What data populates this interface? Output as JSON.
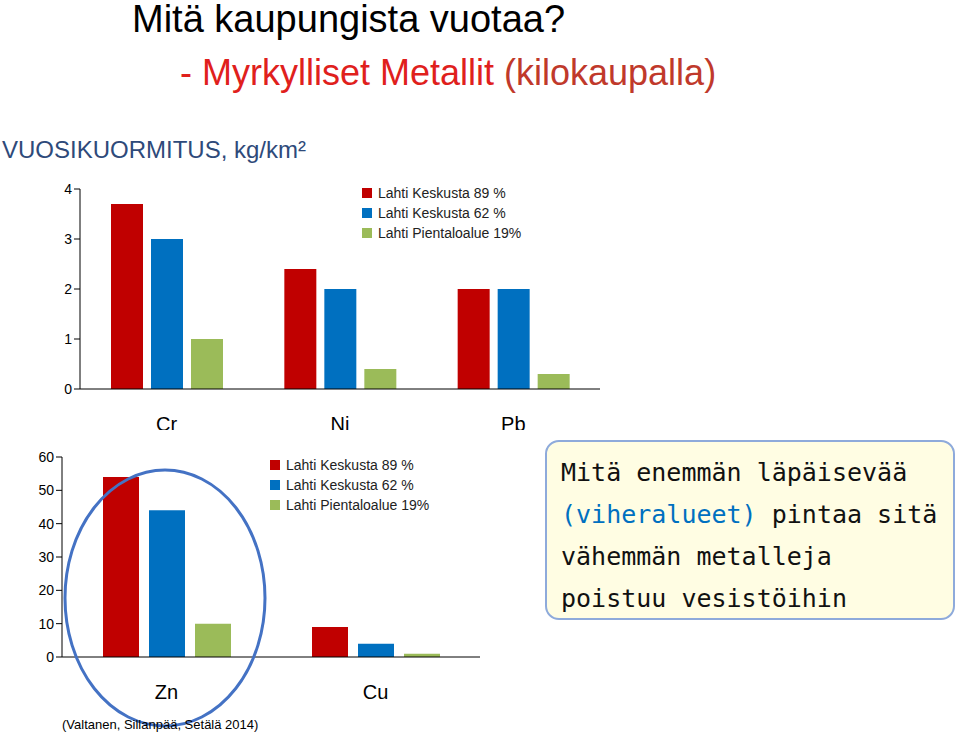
{
  "chart_data": [
    {
      "type": "bar",
      "title": "Mitä kaupungista vuotaa?",
      "subtitle": "- Myrkylliset Metallit (kilokaupalla)",
      "ylabel": "VUOSIKUORMITUS, kg/km²",
      "categories": [
        "Cr",
        "Ni",
        "Pb"
      ],
      "series": [
        {
          "name": "Lahti Keskusta 89 %",
          "color": "#c00000",
          "values": [
            3.7,
            2.4,
            2.0
          ]
        },
        {
          "name": "Lahti Keskusta 62 %",
          "color": "#0070c0",
          "values": [
            3.0,
            2.0,
            2.0
          ]
        },
        {
          "name": "Lahti Pientaloalue 19%",
          "color": "#9bbb59",
          "values": [
            1.0,
            0.4,
            0.3
          ]
        }
      ],
      "ylim": [
        0,
        4
      ],
      "yticks": [
        0,
        1,
        2,
        3,
        4
      ],
      "grid": false
    },
    {
      "type": "bar",
      "categories": [
        "Zn",
        "Cu"
      ],
      "series": [
        {
          "name": "Lahti Keskusta 89 %",
          "color": "#c00000",
          "values": [
            54,
            9
          ]
        },
        {
          "name": "Lahti Keskusta 62 %",
          "color": "#0070c0",
          "values": [
            44,
            4
          ]
        },
        {
          "name": "Lahti Pientaloalue 19%",
          "color": "#9bbb59",
          "values": [
            10,
            1
          ]
        }
      ],
      "ylim": [
        0,
        60
      ],
      "yticks": [
        0,
        10,
        20,
        30,
        40,
        50,
        60
      ],
      "grid": false,
      "annotation": [
        "Mitä enemmän läpäisevää",
        "(viheralueet) pintaa sitä",
        "vähemmän metalleja",
        "poistuu vesistöihin"
      ],
      "source": "(Valtanen, Sillanpää, Setälä 2014)"
    }
  ]
}
